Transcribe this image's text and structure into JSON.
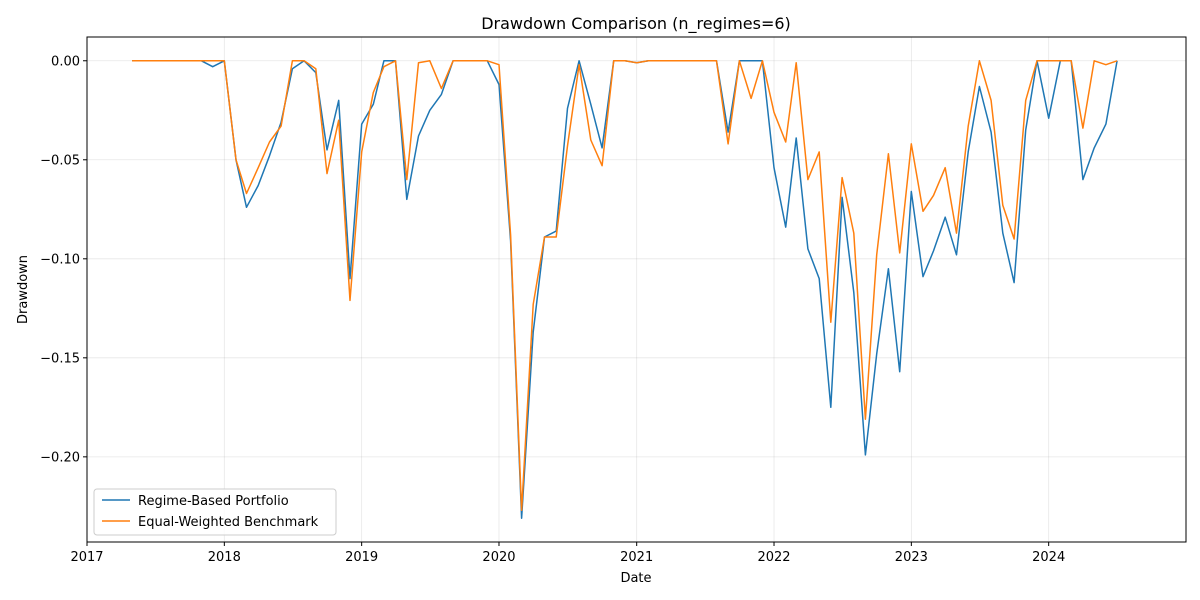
{
  "chart_data": {
    "type": "line",
    "title": "Drawdown Comparison (n_regimes=6)",
    "xlabel": "Date",
    "ylabel": "Drawdown",
    "xlim": [
      "2017-01-01",
      "2024-12-31"
    ],
    "ylim": [
      -0.243,
      0.012
    ],
    "x_ticks": [
      "2017",
      "2018",
      "2019",
      "2020",
      "2021",
      "2022",
      "2023",
      "2024"
    ],
    "y_ticks": [
      0.0,
      -0.05,
      -0.1,
      -0.15,
      -0.2
    ],
    "y_tick_labels": [
      "0.00",
      "−0.05",
      "−0.10",
      "−0.15",
      "−0.20"
    ],
    "grid": true,
    "legend_position": "lower-left",
    "x": [
      "2017-05",
      "2017-06",
      "2017-07",
      "2017-08",
      "2017-09",
      "2017-10",
      "2017-11",
      "2017-12",
      "2018-01",
      "2018-02",
      "2018-03",
      "2018-04",
      "2018-05",
      "2018-06",
      "2018-07",
      "2018-08",
      "2018-09",
      "2018-10",
      "2018-11",
      "2018-12",
      "2019-01",
      "2019-02",
      "2019-03",
      "2019-04",
      "2019-05",
      "2019-06",
      "2019-07",
      "2019-08",
      "2019-09",
      "2019-10",
      "2019-11",
      "2019-12",
      "2020-01",
      "2020-02",
      "2020-03",
      "2020-04",
      "2020-05",
      "2020-06",
      "2020-07",
      "2020-08",
      "2020-09",
      "2020-10",
      "2020-11",
      "2020-12",
      "2021-01",
      "2021-02",
      "2021-03",
      "2021-04",
      "2021-05",
      "2021-06",
      "2021-07",
      "2021-08",
      "2021-09",
      "2021-10",
      "2021-11",
      "2021-12",
      "2022-01",
      "2022-02",
      "2022-03",
      "2022-04",
      "2022-05",
      "2022-06",
      "2022-07",
      "2022-08",
      "2022-09",
      "2022-10",
      "2022-11",
      "2022-12",
      "2023-01",
      "2023-02",
      "2023-03",
      "2023-04",
      "2023-05",
      "2023-06",
      "2023-07",
      "2023-08",
      "2023-09",
      "2023-10",
      "2023-11",
      "2023-12",
      "2024-01",
      "2024-02",
      "2024-03",
      "2024-04",
      "2024-05",
      "2024-06",
      "2024-07"
    ],
    "series": [
      {
        "name": "Regime-Based Portfolio",
        "color": "#1f77b4",
        "values": [
          0.0,
          0.0,
          0.0,
          0.0,
          0.0,
          0.0,
          0.0,
          -0.003,
          0.0,
          -0.05,
          -0.074,
          -0.063,
          -0.048,
          -0.031,
          -0.004,
          0.0,
          -0.006,
          -0.045,
          -0.02,
          -0.11,
          -0.032,
          -0.022,
          0.0,
          0.0,
          -0.07,
          -0.038,
          -0.025,
          -0.017,
          0.0,
          0.0,
          0.0,
          0.0,
          -0.012,
          -0.091,
          -0.231,
          -0.137,
          -0.089,
          -0.086,
          -0.024,
          0.0,
          -0.022,
          -0.044,
          0.0,
          0.0,
          -0.001,
          0.0,
          0.0,
          0.0,
          0.0,
          0.0,
          0.0,
          0.0,
          -0.036,
          0.0,
          0.0,
          0.0,
          -0.054,
          -0.084,
          -0.039,
          -0.095,
          -0.11,
          -0.175,
          -0.069,
          -0.117,
          -0.199,
          -0.148,
          -0.105,
          -0.157,
          -0.066,
          -0.109,
          -0.096,
          -0.079,
          -0.098,
          -0.046,
          -0.013,
          -0.036,
          -0.087,
          -0.112,
          -0.035,
          0.0,
          -0.029,
          0.0,
          0.0,
          -0.06,
          -0.044,
          -0.032,
          0.0
        ]
      },
      {
        "name": "Equal-Weighted Benchmark",
        "color": "#ff7f0e",
        "values": [
          0.0,
          0.0,
          0.0,
          0.0,
          0.0,
          0.0,
          0.0,
          0.0,
          0.0,
          -0.05,
          -0.067,
          -0.054,
          -0.041,
          -0.033,
          0.0,
          0.0,
          -0.004,
          -0.057,
          -0.03,
          -0.121,
          -0.046,
          -0.016,
          -0.003,
          0.0,
          -0.06,
          -0.001,
          0.0,
          -0.014,
          0.0,
          0.0,
          0.0,
          0.0,
          -0.002,
          -0.088,
          -0.227,
          -0.123,
          -0.089,
          -0.089,
          -0.043,
          -0.002,
          -0.04,
          -0.053,
          0.0,
          0.0,
          -0.001,
          0.0,
          0.0,
          0.0,
          0.0,
          0.0,
          0.0,
          0.0,
          -0.042,
          0.0,
          -0.019,
          0.0,
          -0.026,
          -0.041,
          -0.001,
          -0.06,
          -0.046,
          -0.132,
          -0.059,
          -0.087,
          -0.181,
          -0.098,
          -0.047,
          -0.097,
          -0.042,
          -0.076,
          -0.068,
          -0.054,
          -0.087,
          -0.033,
          0.0,
          -0.02,
          -0.073,
          -0.09,
          -0.02,
          0.0,
          0.0,
          0.0,
          0.0,
          -0.034,
          0.0,
          -0.002,
          0.0
        ]
      }
    ]
  }
}
